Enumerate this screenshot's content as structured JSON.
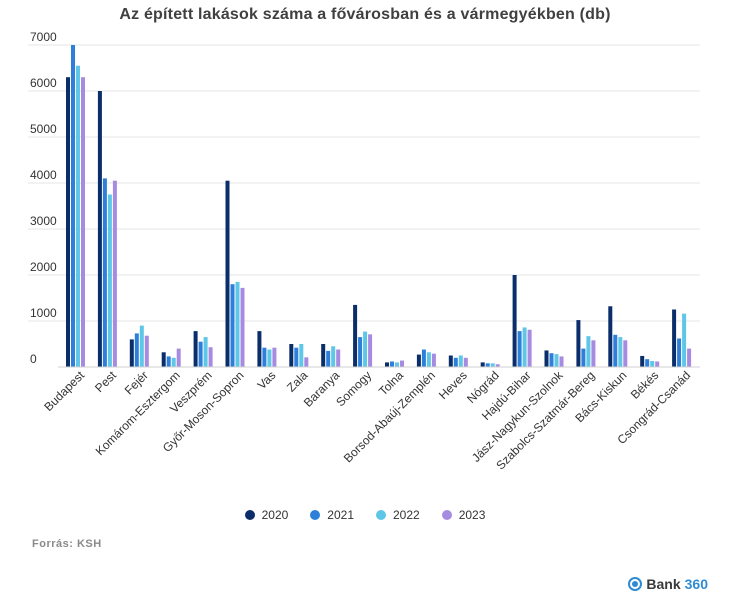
{
  "chart_data": {
    "type": "bar",
    "title": "Az épített lakások száma a fővárosban és a vármegyékben (db)",
    "ylim": [
      0,
      7000
    ],
    "yticks": [
      0,
      1000,
      2000,
      3000,
      4000,
      5000,
      6000,
      7000
    ],
    "grid": true,
    "legend_position": "bottom",
    "categories": [
      "Budapest",
      "Pest",
      "Fejér",
      "Komárom-Esztergom",
      "Veszprém",
      "Győr-Moson-Sopron",
      "Vas",
      "Zala",
      "Baranya",
      "Somogy",
      "Tolna",
      "Borsod-Abaúj-Zemplén",
      "Heves",
      "Nógrád",
      "Hajdú-Bihar",
      "Jász-Nagykun-Szolnok",
      "Szabolcs-Szatmár-Bereg",
      "Bács-Kiskun",
      "Békés",
      "Csongrád-Csanád"
    ],
    "series": [
      {
        "name": "2020",
        "color": "#0b2e6b",
        "values": [
          6300,
          6000,
          600,
          320,
          780,
          4050,
          780,
          500,
          500,
          1350,
          100,
          270,
          250,
          100,
          2000,
          360,
          1020,
          1320,
          240,
          1250
        ]
      },
      {
        "name": "2021",
        "color": "#2e7fd9",
        "values": [
          7000,
          4100,
          730,
          230,
          550,
          1800,
          420,
          420,
          350,
          650,
          120,
          380,
          200,
          80,
          780,
          300,
          400,
          700,
          170,
          620
        ]
      },
      {
        "name": "2022",
        "color": "#5ec6e6",
        "values": [
          6550,
          3750,
          900,
          200,
          650,
          1850,
          380,
          500,
          450,
          770,
          100,
          320,
          250,
          80,
          860,
          280,
          670,
          650,
          130,
          1160
        ]
      },
      {
        "name": "2023",
        "color": "#a78be0",
        "values": [
          6300,
          4050,
          680,
          400,
          430,
          1720,
          420,
          210,
          380,
          710,
          140,
          290,
          200,
          60,
          810,
          230,
          580,
          580,
          120,
          400
        ]
      }
    ]
  },
  "source": "Forrás: KSH",
  "brand": {
    "name": "Bank",
    "number": "360"
  }
}
